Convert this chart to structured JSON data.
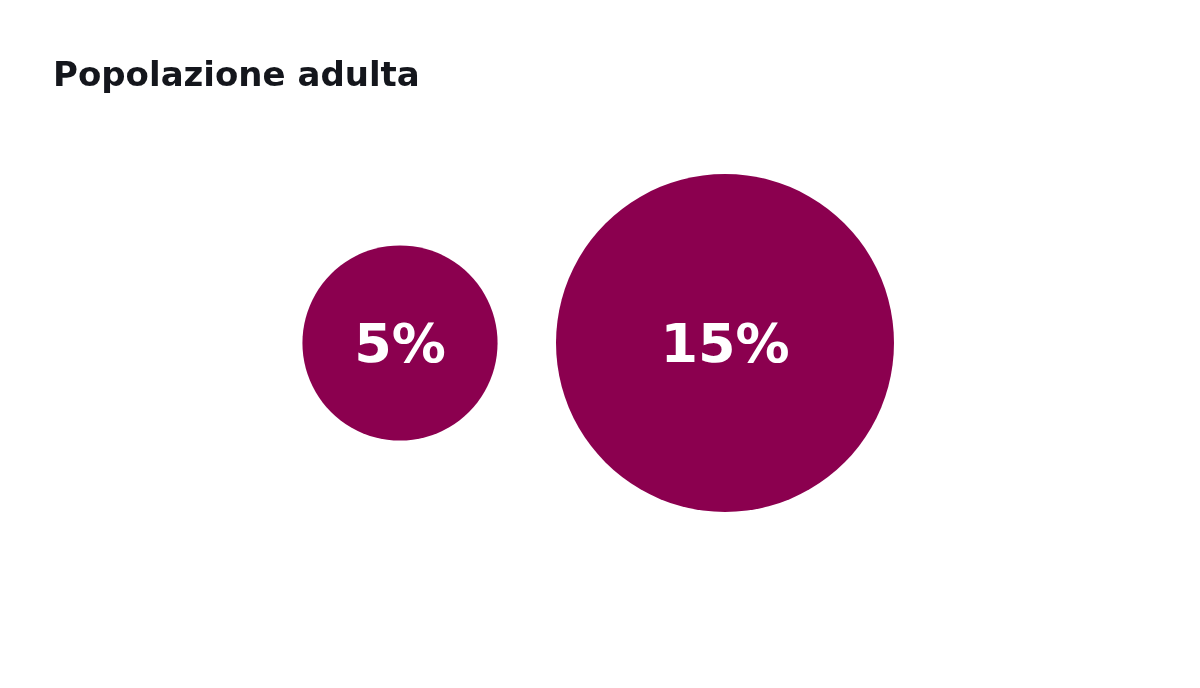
{
  "chart_data": {
    "type": "other",
    "title": "Popolazione adulta",
    "categories": [
      null,
      null
    ],
    "values": [
      5,
      15
    ],
    "value_labels": [
      "5%",
      "15%"
    ],
    "color": "#8b004f"
  }
}
